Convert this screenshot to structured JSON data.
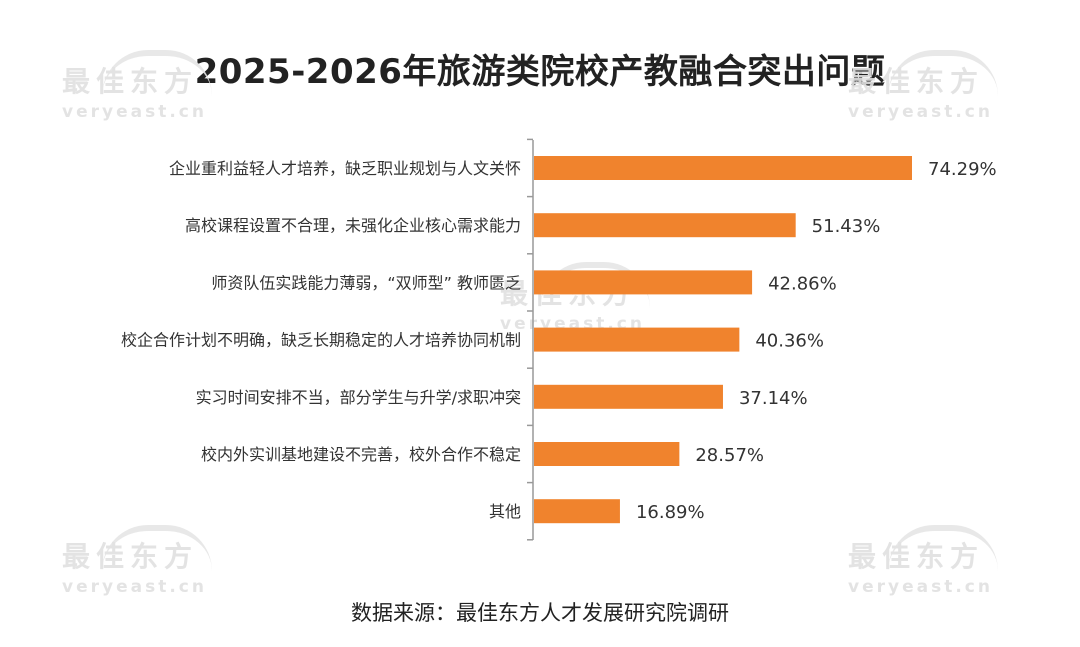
{
  "title": "2025-2026年旅游类院校产教融合突出问题",
  "source": "数据来源：最佳东方人才发展研究院调研",
  "watermark": {
    "cn": "最佳东方",
    "en": "veryeast.cn"
  },
  "colors": {
    "bar": "#F0832D",
    "axis": "#999999",
    "text": "#333333"
  },
  "chart_data": {
    "type": "bar",
    "orientation": "horizontal",
    "title": "2025-2026年旅游类院校产教融合突出问题",
    "categories": [
      "企业重利益轻人才培养，缺乏职业规划与人文关怀",
      "高校课程设置不合理，未强化企业核心需求能力",
      "师资队伍实践能力薄弱，“双师型” 教师匮乏",
      "校企合作计划不明确，缺乏长期稳定的人才培养协同机制",
      "实习时间安排不当，部分学生与升学/求职冲突",
      "校内外实训基地建设不完善，校外合作不稳定",
      "其他"
    ],
    "values": [
      74.29,
      51.43,
      42.86,
      40.36,
      37.14,
      28.57,
      16.89
    ],
    "labels": [
      "74.29%",
      "51.43%",
      "42.86%",
      "40.36%",
      "37.14%",
      "28.57%",
      "16.89%"
    ],
    "unit": "%",
    "xlim": [
      0,
      74.29
    ],
    "grid": false,
    "legend": "none"
  }
}
